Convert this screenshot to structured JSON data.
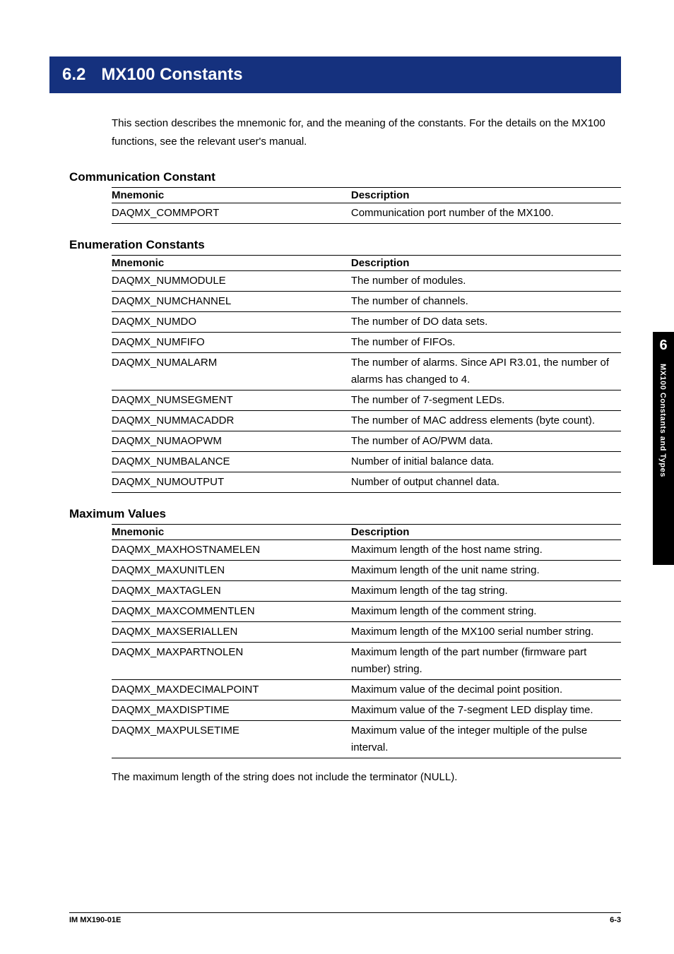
{
  "styles": {
    "header_bg": "#15317e",
    "header_text_color": "#ffffff",
    "body_bg": "#ffffff",
    "text_color": "#000000",
    "tab_bg": "#000000",
    "tab_text": "#ffffff",
    "table_border_color": "#000000",
    "font_family": "Arial, Helvetica, sans-serif",
    "header_fontsize": 24,
    "subsection_fontsize": 17,
    "body_fontsize": 15,
    "footer_fontsize": 11,
    "tab_num_fontsize": 20,
    "tab_text_fontsize": 11
  },
  "header": {
    "number": "6.2",
    "title": "MX100 Constants"
  },
  "intro": "This section describes the mnemonic for, and the meaning of the constants. For the details on the MX100 functions, see the relevant user's manual.",
  "sections": [
    {
      "title": "Communication Constant",
      "columns": [
        "Mnemonic",
        "Description"
      ],
      "rows": [
        [
          "DAQMX_COMMPORT",
          "Communication port number of the MX100."
        ]
      ]
    },
    {
      "title": "Enumeration Constants",
      "columns": [
        "Mnemonic",
        "Description"
      ],
      "rows": [
        [
          "DAQMX_NUMMODULE",
          "The number of modules."
        ],
        [
          "DAQMX_NUMCHANNEL",
          "The number of channels."
        ],
        [
          "DAQMX_NUMDO",
          "The number of DO data sets."
        ],
        [
          "DAQMX_NUMFIFO",
          "The number of FIFOs."
        ],
        [
          "DAQMX_NUMALARM",
          "The number of alarms. Since API R3.01, the number of alarms has changed to 4."
        ],
        [
          "DAQMX_NUMSEGMENT",
          "The number of 7-segment LEDs."
        ],
        [
          "DAQMX_NUMMACADDR",
          "The number of MAC address elements (byte count)."
        ],
        [
          "DAQMX_NUMAOPWM",
          "The number of AO/PWM data."
        ],
        [
          "DAQMX_NUMBALANCE",
          "Number of initial balance data."
        ],
        [
          "DAQMX_NUMOUTPUT",
          "Number of output channel data."
        ]
      ]
    },
    {
      "title": "Maximum Values",
      "columns": [
        "Mnemonic",
        "Description"
      ],
      "rows": [
        [
          "DAQMX_MAXHOSTNAMELEN",
          "Maximum length of the host name string."
        ],
        [
          "DAQMX_MAXUNITLEN",
          "Maximum length of the unit name string."
        ],
        [
          "DAQMX_MAXTAGLEN",
          "Maximum length of the tag string."
        ],
        [
          "DAQMX_MAXCOMMENTLEN",
          "Maximum length of the comment string."
        ],
        [
          "DAQMX_MAXSERIALLEN",
          "Maximum length of the MX100 serial number string."
        ],
        [
          "DAQMX_MAXPARTNOLEN",
          "Maximum length of the part number (firmware part number) string."
        ],
        [
          "DAQMX_MAXDECIMALPOINT",
          "Maximum value of the decimal point position."
        ],
        [
          "DAQMX_MAXDISPTIME",
          "Maximum value of the 7-segment LED display time."
        ],
        [
          "DAQMX_MAXPULSETIME",
          "Maximum value of the integer multiple of the pulse interval."
        ]
      ]
    }
  ],
  "note": "The maximum length of the string does not include the terminator (NULL).",
  "side_tab": {
    "number": "6",
    "text": "MX100 Constants and Types"
  },
  "footer": {
    "left": "IM MX190-01E",
    "right": "6-3"
  }
}
